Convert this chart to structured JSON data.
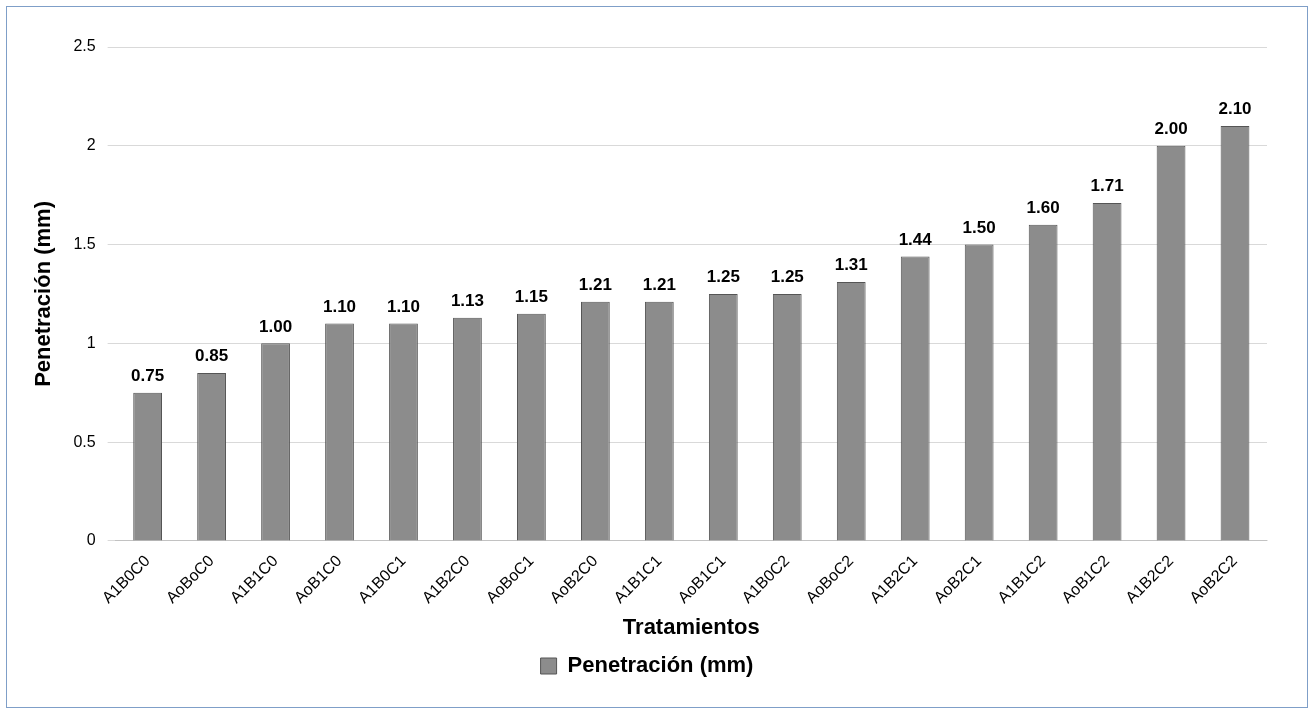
{
  "chart_data": {
    "type": "bar",
    "xlabel": "Tratamientos",
    "ylabel": "Penetración (mm)",
    "categories": [
      "A1B0C0",
      "AoBoC0",
      "A1B1C0",
      "AoB1C0",
      "A1B0C1",
      "A1B2C0",
      "AoBoC1",
      "AoB2C0",
      "A1B1C1",
      "AoB1C1",
      "A1B0C2",
      "AoBoC2",
      "A1B2C1",
      "AoB2C1",
      "A1B1C2",
      "AoB1C2",
      "A1B2C2",
      "AoB2C2"
    ],
    "series": [
      {
        "name": "Penetración (mm)",
        "color": "#8c8c8c",
        "values": [
          0.75,
          0.85,
          1.0,
          1.1,
          1.1,
          1.13,
          1.15,
          1.21,
          1.21,
          1.25,
          1.25,
          1.31,
          1.44,
          1.5,
          1.6,
          1.71,
          2.0,
          2.1
        ],
        "value_labels": [
          "0.75",
          "0.85",
          "1.00",
          "1.10",
          "1.10",
          "1.13",
          "1.15",
          "1.21",
          "1.21",
          "1.25",
          "1.25",
          "1.31",
          "1.44",
          "1.50",
          "1.60",
          "1.71",
          "2.00",
          "2.10"
        ]
      }
    ],
    "ylim": [
      0,
      2.5
    ],
    "yticks": [
      0,
      0.5,
      1,
      1.5,
      2,
      2.5
    ],
    "grid": "y",
    "legend": "bottom"
  }
}
